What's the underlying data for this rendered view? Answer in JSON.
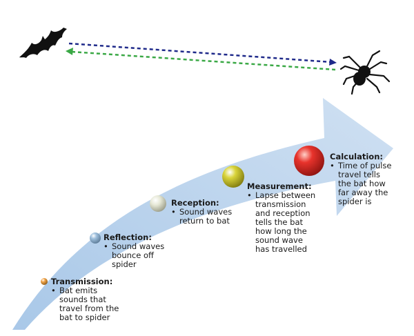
{
  "colors": {
    "arrow_light": "#cfe0f2",
    "arrow_mid": "#a9c8e8",
    "transmit_line": "#1f2a8a",
    "reflect_line": "#3aa845",
    "silhouette": "#111111"
  },
  "icons": {
    "bat": "bat-icon",
    "spider": "spider-icon"
  },
  "steps": [
    {
      "title": "Transmission:",
      "lines": [
        "Bat emits",
        "sounds that",
        "travel from the",
        "bat to spider"
      ],
      "ball_color": "#f3a64a"
    },
    {
      "title": "Reflection:",
      "lines": [
        "Sound waves",
        "bounce off",
        "spider"
      ],
      "ball_color": "#9fc0dd"
    },
    {
      "title": "Reception:",
      "lines": [
        "Sound waves",
        "return to bat"
      ],
      "ball_color": "#e6e8d6"
    },
    {
      "title": "Measurement:",
      "lines": [
        "Lapse between",
        "transmission",
        "and reception",
        "tells the bat",
        "how long the",
        "sound wave",
        "has travelled"
      ],
      "ball_color": "#d9d43a"
    },
    {
      "title": "Calculation:",
      "lines": [
        "Time of pulse",
        "travel tells",
        "the bat how",
        "far away the",
        "spider is"
      ],
      "ball_color": "#e8332c"
    }
  ]
}
